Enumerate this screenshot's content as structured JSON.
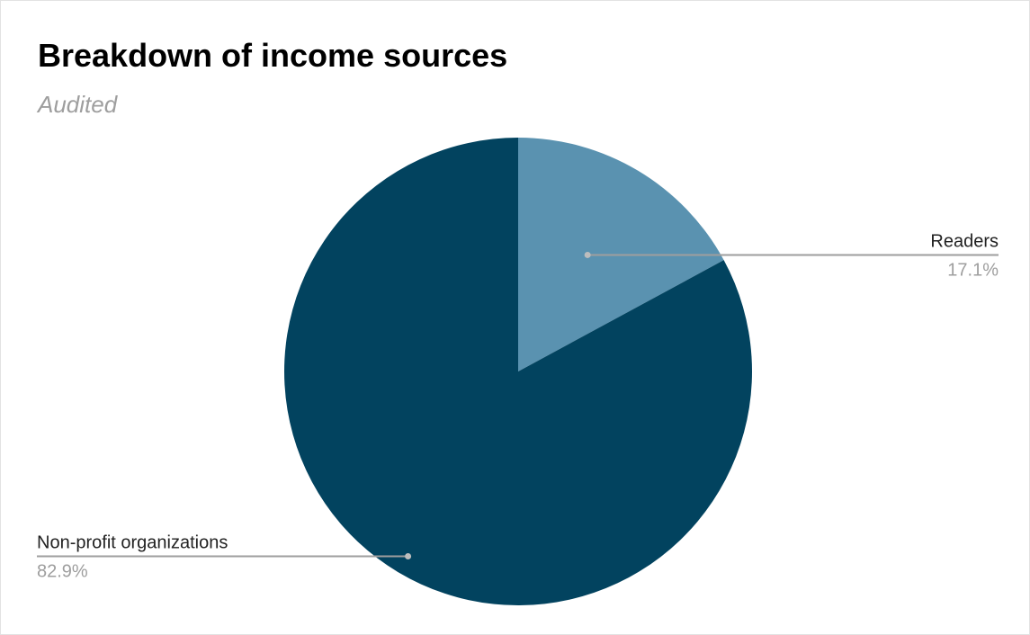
{
  "chart_data": {
    "type": "pie",
    "title": "Breakdown of income sources",
    "subtitle": "Audited",
    "slices": [
      {
        "label": "Readers",
        "value": 17.1,
        "value_label": "17.1%",
        "color": "#5a92b0"
      },
      {
        "label": "Non-profit organizations",
        "value": 82.9,
        "value_label": "82.9%",
        "color": "#02435f"
      }
    ],
    "start_angle": "12 o'clock",
    "direction": "clockwise",
    "leader_line_color": "#9e9e9e",
    "background": "#ffffff"
  }
}
